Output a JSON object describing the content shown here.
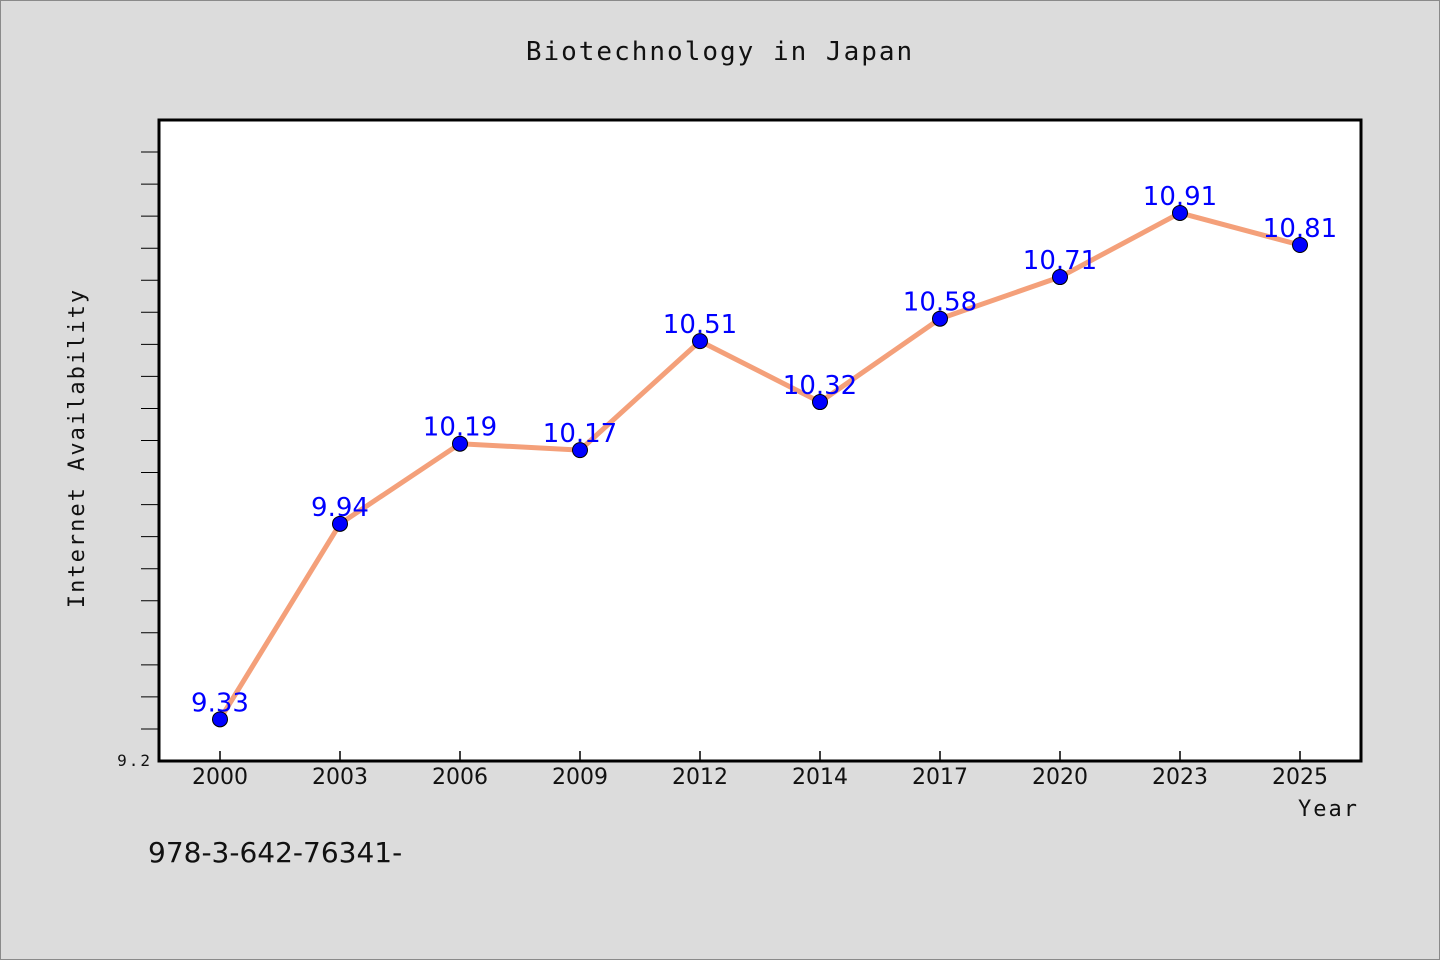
{
  "footnote": "978-3-642-76341-",
  "chart_data": {
    "type": "line",
    "title": "Biotechnology in Japan",
    "xlabel": "Year",
    "ylabel": "Internet Availability",
    "categories": [
      "2000",
      "2003",
      "2006",
      "2009",
      "2012",
      "2014",
      "2017",
      "2020",
      "2023",
      "2025"
    ],
    "series": [
      {
        "values": [
          9.33,
          9.94,
          10.19,
          10.17,
          10.51,
          10.32,
          10.58,
          10.71,
          10.91,
          10.81
        ],
        "labels": [
          "9.33",
          "9.94",
          "10.19",
          "10.17",
          "10.51",
          "10.32",
          "10.58",
          "10.71",
          "10.91",
          "10.81"
        ],
        "line_color": "#f4a07a",
        "marker_color": "#0000ff"
      }
    ],
    "ylim": [
      9.2,
      11.2
    ],
    "yticks_labeled": [
      "9.2"
    ],
    "grid": false,
    "background": "#ffffff",
    "page_background": "#dcdcdc"
  }
}
